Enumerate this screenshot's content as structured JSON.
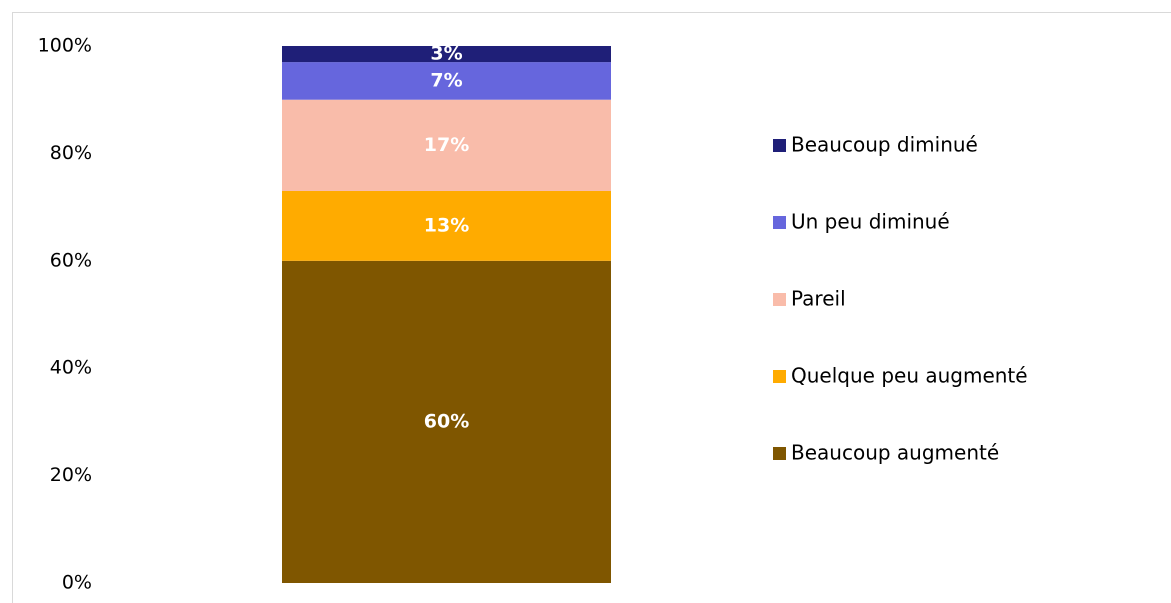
{
  "chart_data": {
    "type": "stacked_bar",
    "categories": [
      null
    ],
    "series": [
      {
        "name": "Beaucoup augmenté",
        "color": "#7f5600",
        "values": [
          60
        ],
        "value_labels": [
          "60%"
        ]
      },
      {
        "name": "Quelque peu augmenté",
        "color": "#ffab00",
        "values": [
          13
        ],
        "value_labels": [
          "13%"
        ]
      },
      {
        "name": "Pareil",
        "color": "#f9bcaa",
        "values": [
          17
        ],
        "value_labels": [
          "17%"
        ]
      },
      {
        "name": "Un peu diminué",
        "color": "#6666dd",
        "values": [
          7
        ],
        "value_labels": [
          "7%"
        ]
      },
      {
        "name": "Beaucoup diminué",
        "color": "#1f1f78",
        "values": [
          3
        ],
        "value_labels": [
          "3%"
        ]
      }
    ],
    "ylim": [
      0,
      100
    ],
    "yticks": [
      {
        "value": 0,
        "label": "0%"
      },
      {
        "value": 20,
        "label": "20%"
      },
      {
        "value": 40,
        "label": "40%"
      },
      {
        "value": 60,
        "label": "60%"
      },
      {
        "value": 80,
        "label": "80%"
      },
      {
        "value": 100,
        "label": "100%"
      }
    ],
    "legend": "right"
  }
}
